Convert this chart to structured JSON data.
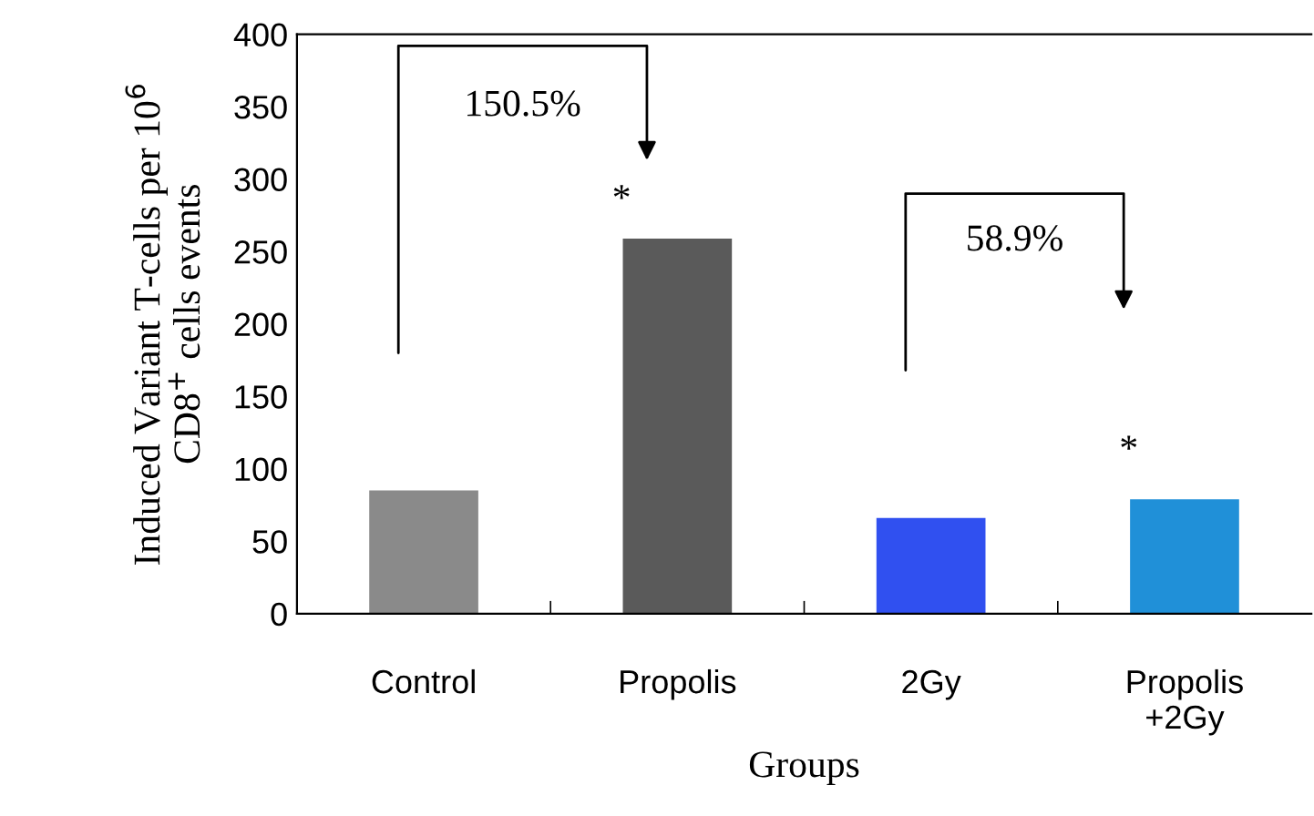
{
  "chart_data": {
    "type": "bar",
    "categories": [
      "Control",
      "Propolis",
      "2Gy",
      "Propolis\n+2Gy"
    ],
    "values": [
      85,
      259,
      66,
      79
    ],
    "colors": [
      "#8a8a8a",
      "#5a5a5a",
      "#3050f0",
      "#2090d8"
    ],
    "xlabel": "Groups",
    "ylabel": "Induced Variant T-cells per 10$^{6}$\nCD8$^{+}$ cells events",
    "ylim": [
      0,
      400
    ],
    "yticks": [
      0,
      50,
      100,
      150,
      200,
      250,
      300,
      350,
      400
    ],
    "annotations": [
      "150.5%",
      "58.9%",
      "*",
      "*"
    ],
    "grid": false
  }
}
